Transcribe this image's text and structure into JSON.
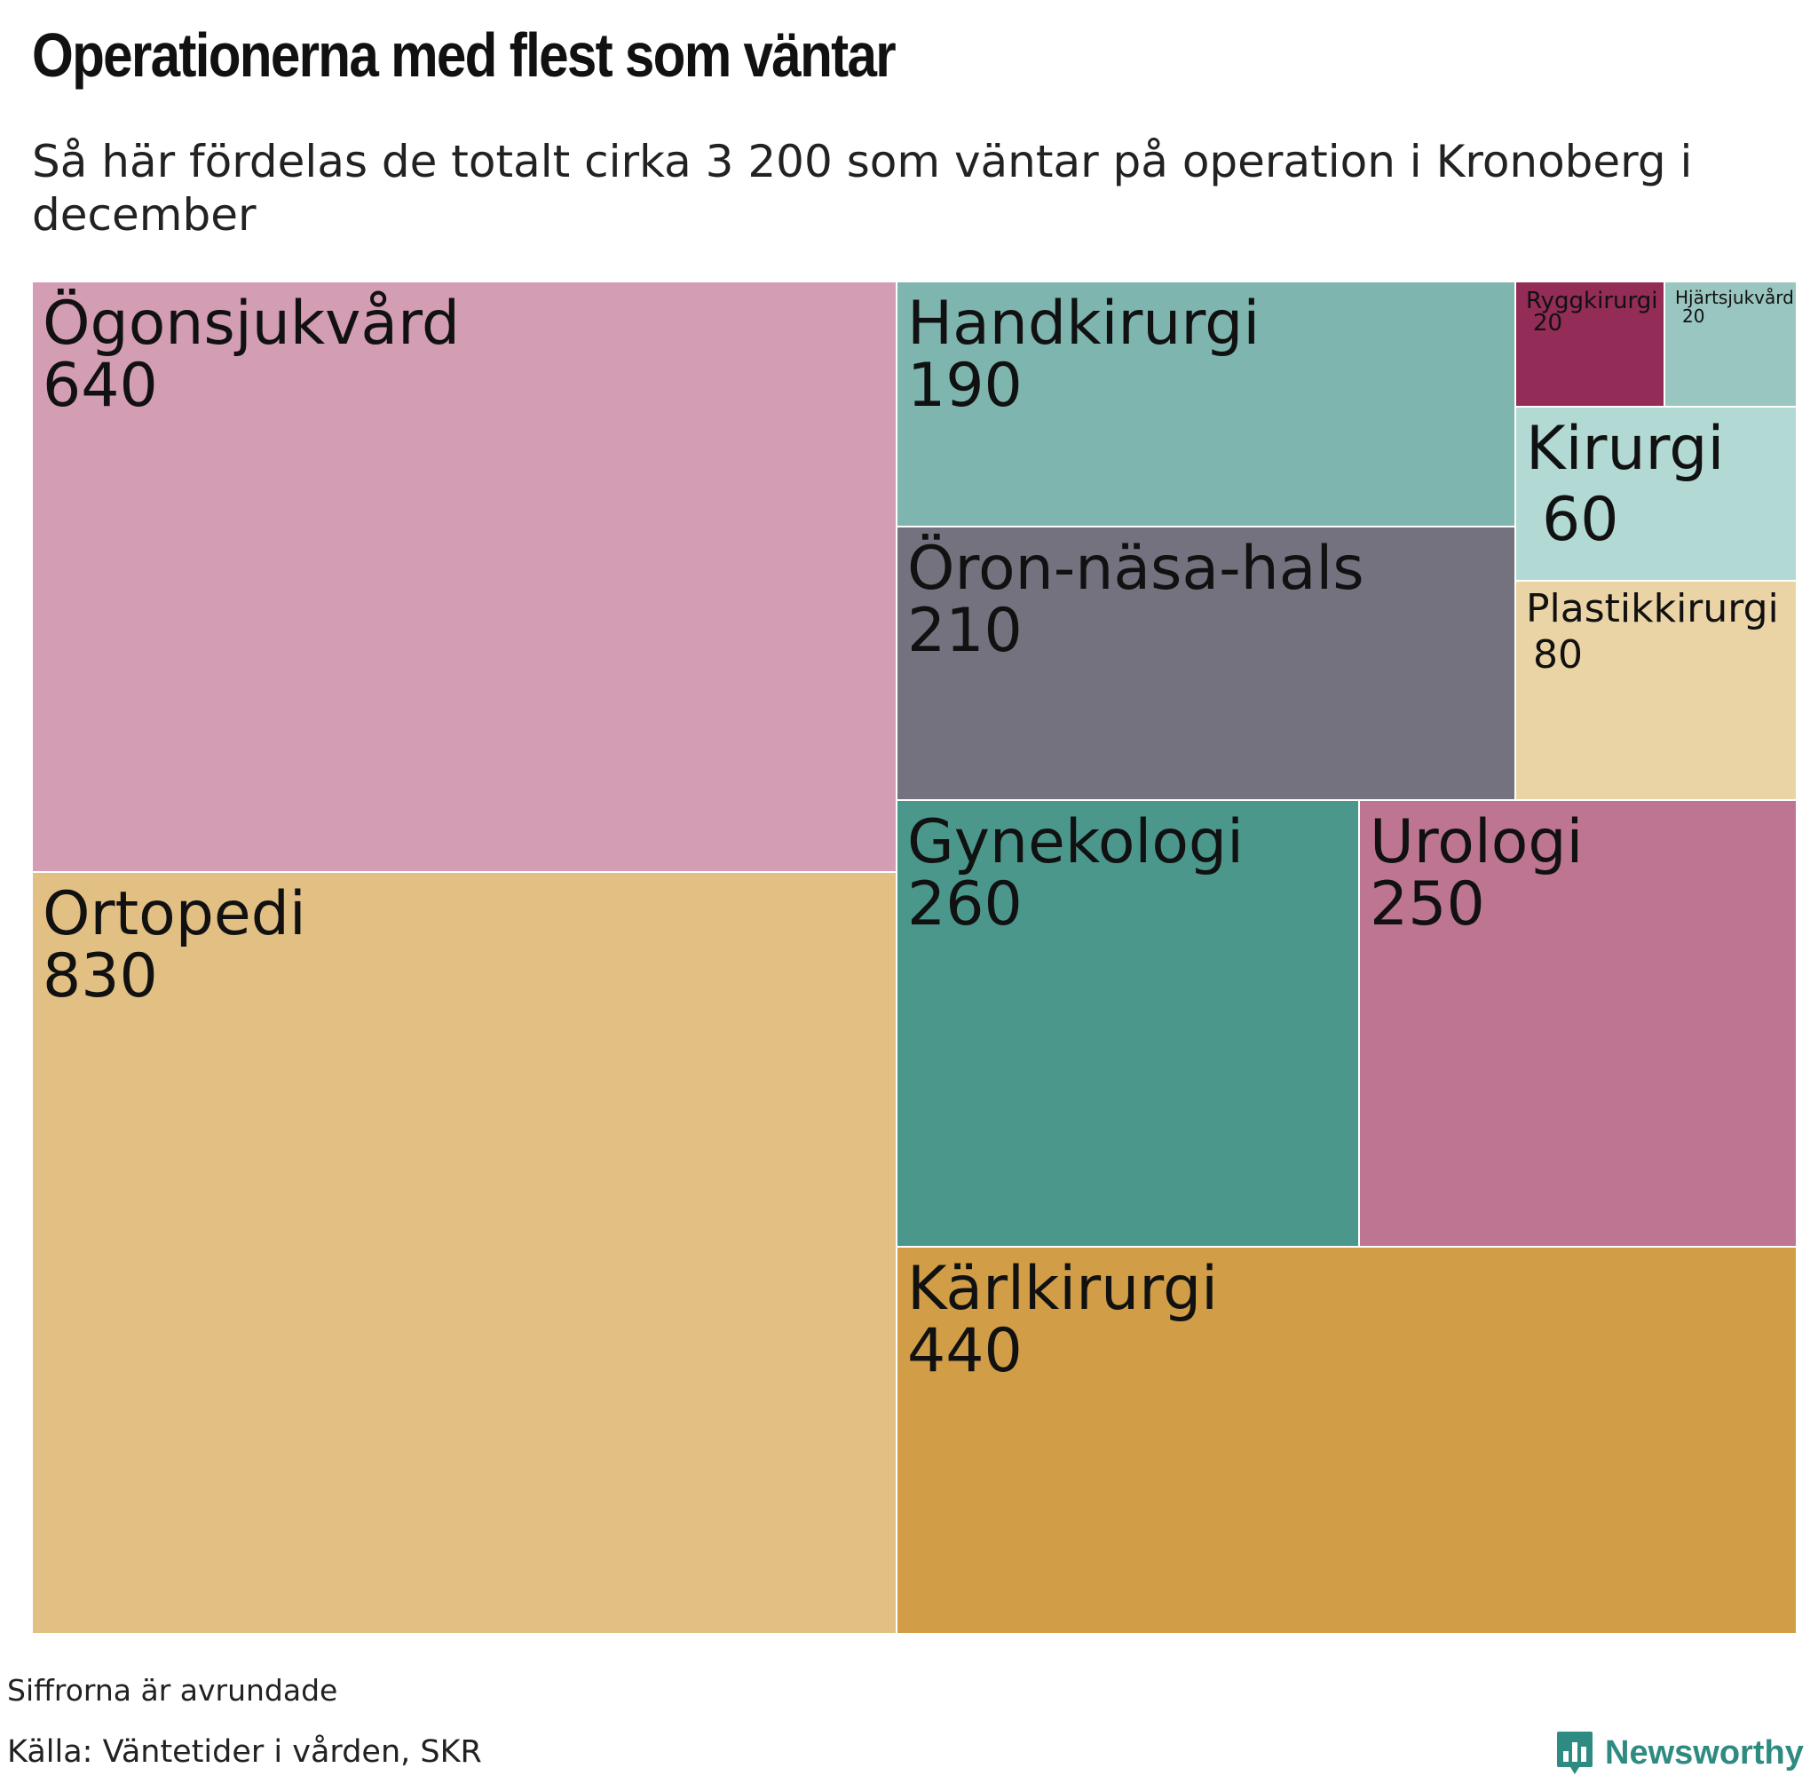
{
  "title": "Operationerna med flest som väntar",
  "subtitle": "Så här fördelas de totalt cirka 3 200 som väntar på operation i Kronoberg i december",
  "footnote": "Siffrorna är avrundade",
  "source": "Källa: Väntetider i vården, SKR",
  "brand": {
    "name": "Newsworthy",
    "icon": "newsworthy-bar-chart-icon",
    "color": "#2e8b82"
  },
  "chart_data": {
    "type": "treemap",
    "unit": "antal som väntar",
    "items": [
      {
        "name": "Ögonsjukvård",
        "value": 640,
        "color": "#d39db4"
      },
      {
        "name": "Ortopedi",
        "value": 830,
        "color": "#e2bf83"
      },
      {
        "name": "Handkirurgi",
        "value": 190,
        "color": "#7fb5af"
      },
      {
        "name": "Öron-näsa-hals",
        "value": 210,
        "color": "#74727f"
      },
      {
        "name": "Ryggkirurgi",
        "value": 20,
        "color": "#932c57"
      },
      {
        "name": "Hjärtsjukvård",
        "value": 20,
        "color": "#99c6c0"
      },
      {
        "name": "Kirurgi",
        "value": 60,
        "color": "#b2d9d3"
      },
      {
        "name": "Plastikkirurgi",
        "value": 80,
        "color": "#ead3a4"
      },
      {
        "name": "Gynekologi",
        "value": 260,
        "color": "#4b978c"
      },
      {
        "name": "Urologi",
        "value": 250,
        "color": "#be7591"
      },
      {
        "name": "Kärlkirurgi",
        "value": 440,
        "color": "#d19e47"
      }
    ]
  }
}
